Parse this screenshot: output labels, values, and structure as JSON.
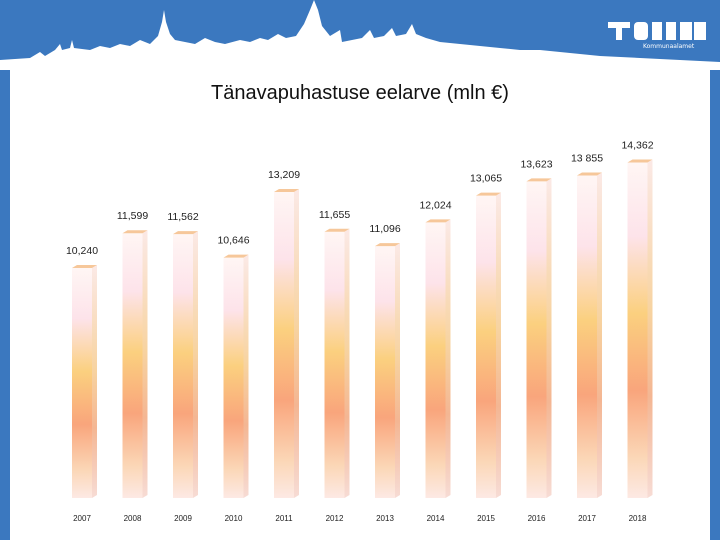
{
  "header": {
    "logo_text": "Tallinn",
    "logo_sub": "Kommunaalamet"
  },
  "chart_data": {
    "type": "bar",
    "title": "Tänavapuhastuse eelarve (mln €)",
    "xlabel": "",
    "ylabel": "",
    "categories": [
      "2007",
      "2008",
      "2009",
      "2010",
      "2011",
      "2012",
      "2013",
      "2014",
      "2015",
      "2016",
      "2017",
      "2018"
    ],
    "values": [
      10.24,
      11.599,
      11.562,
      10.646,
      13.209,
      11.655,
      11.096,
      12.024,
      13.065,
      13.623,
      13.855,
      14.362
    ],
    "labels": [
      "10,240",
      "11,599",
      "11,562",
      "10,646",
      "13,209",
      "11,655",
      "11,096",
      "12,024",
      "13,065",
      "13,623",
      "13 855",
      "14,362"
    ],
    "grid": false,
    "legend": "none",
    "bar_colors": [
      "#fde3ea",
      "#fbd07f",
      "#f9a57c",
      "#fde9e4"
    ]
  }
}
